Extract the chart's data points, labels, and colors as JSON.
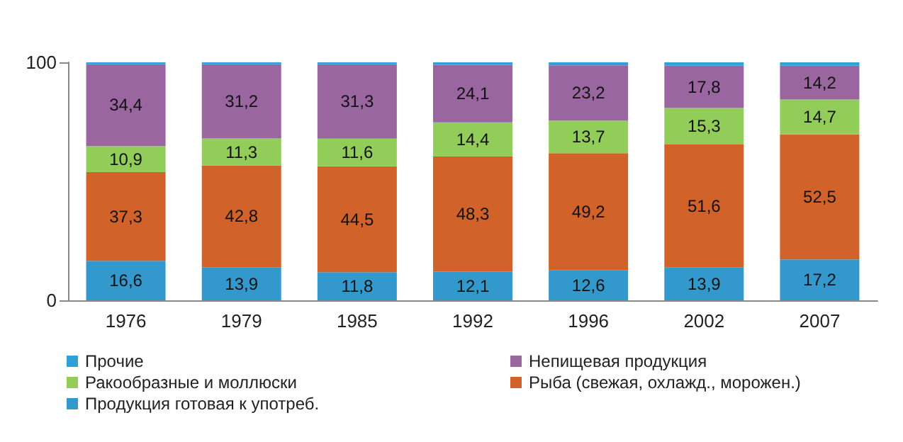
{
  "chart_data": {
    "type": "bar",
    "stacked": true,
    "categories": [
      "1976",
      "1979",
      "1985",
      "1992",
      "1996",
      "2002",
      "2007"
    ],
    "series": [
      {
        "name": "Продукция готовая к употреб.",
        "color": "#3399cc",
        "values": [
          16.6,
          13.9,
          11.8,
          12.1,
          12.6,
          13.9,
          17.2
        ],
        "value_labels": [
          "16,6",
          "13,9",
          "11,8",
          "12,1",
          "12,6",
          "13,9",
          "17,2"
        ]
      },
      {
        "name": "Рыба (свежая, охлажд., морожен.)",
        "color": "#d0622a",
        "values": [
          37.3,
          42.8,
          44.5,
          48.3,
          49.2,
          51.6,
          52.5
        ],
        "value_labels": [
          "37,3",
          "42,8",
          "44,5",
          "48,3",
          "49,2",
          "51,6",
          "52,5"
        ]
      },
      {
        "name": "Ракообразные и моллюски",
        "color": "#92cd5a",
        "values": [
          10.9,
          11.3,
          11.6,
          14.4,
          13.7,
          15.3,
          14.7
        ],
        "value_labels": [
          "10,9",
          "11,3",
          "11,6",
          "14,4",
          "13,7",
          "15,3",
          "14,7"
        ]
      },
      {
        "name": "Непищевая продукция",
        "color": "#9a66a0",
        "values": [
          34.4,
          31.2,
          31.3,
          24.1,
          23.2,
          17.8,
          14.2
        ],
        "value_labels": [
          "34,4",
          "31,2",
          "31,3",
          "24,1",
          "23,2",
          "17,8",
          "14,2"
        ]
      },
      {
        "name": "Прочие",
        "color": "#2fa0d8",
        "values": [
          0.8,
          0.8,
          0.8,
          1.1,
          1.3,
          1.4,
          1.4
        ]
      }
    ],
    "ylim": [
      0,
      100
    ],
    "yticks": [
      0,
      100
    ],
    "grid": false,
    "legend": "bottom"
  }
}
